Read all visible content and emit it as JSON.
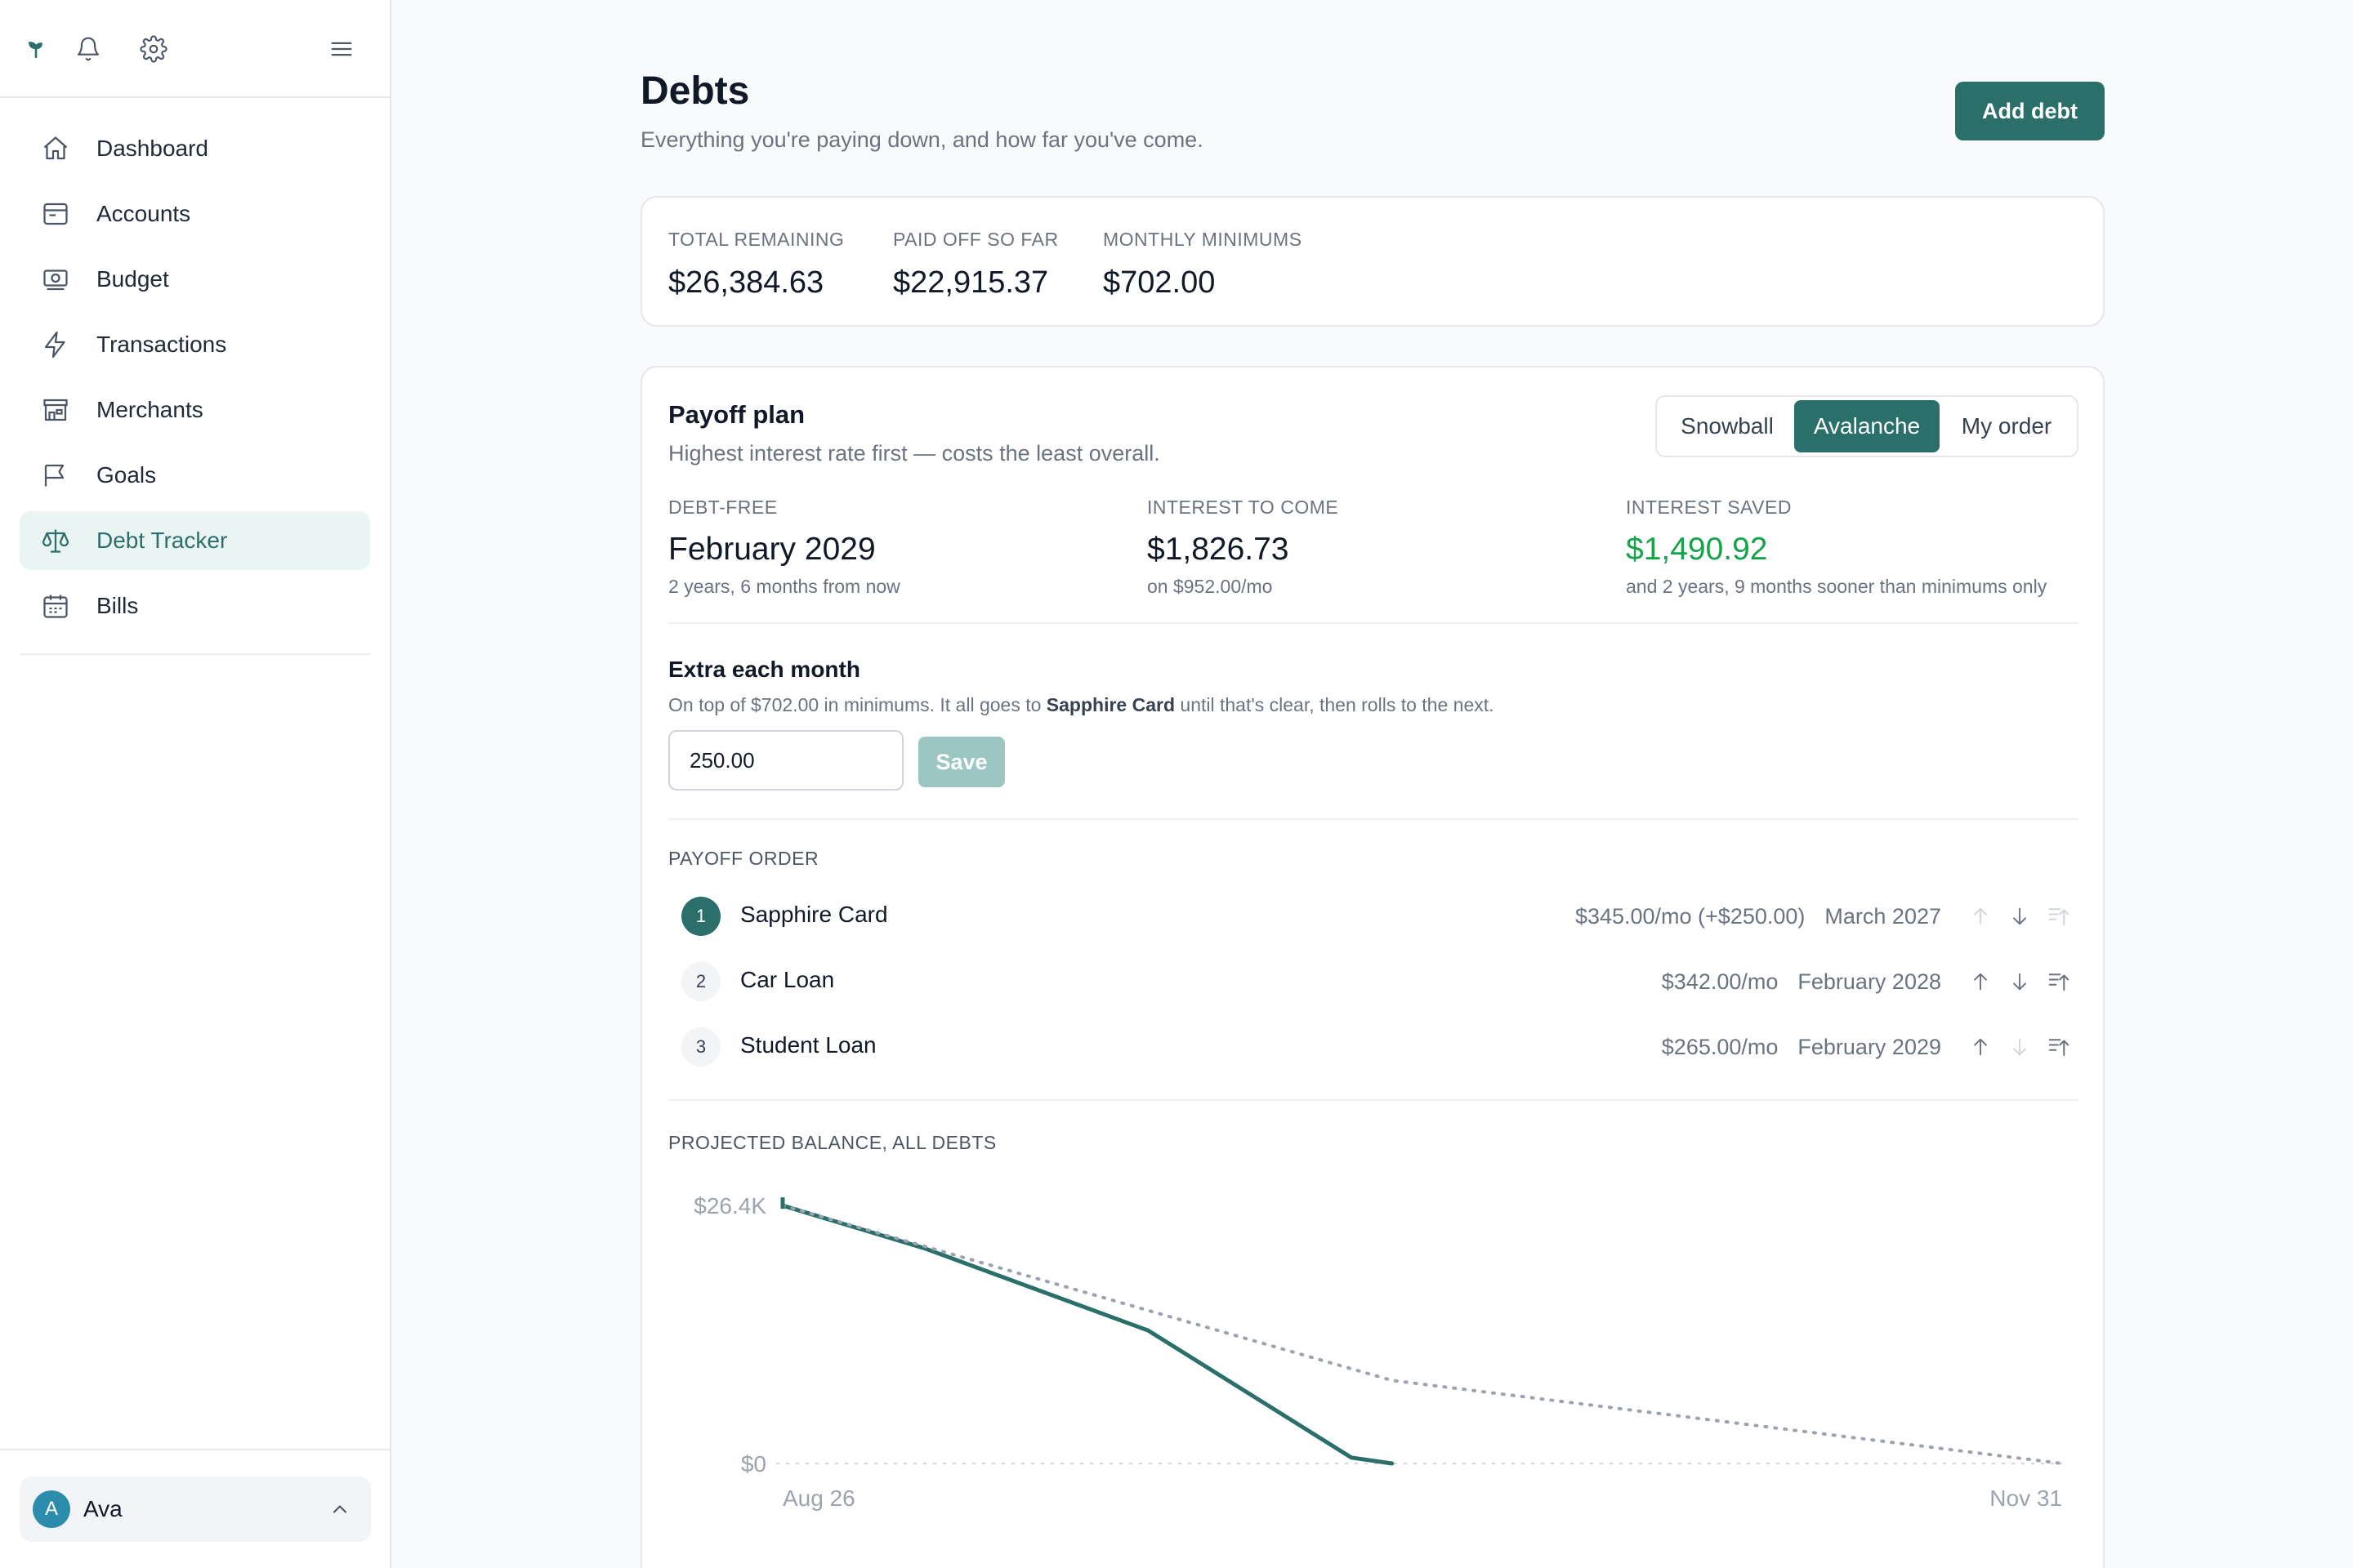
{
  "sidebar": {
    "items": [
      {
        "label": "Dashboard",
        "icon": "home-icon"
      },
      {
        "label": "Accounts",
        "icon": "wallet-icon"
      },
      {
        "label": "Budget",
        "icon": "banknote-icon"
      },
      {
        "label": "Transactions",
        "icon": "bolt-icon"
      },
      {
        "label": "Merchants",
        "icon": "store-icon"
      },
      {
        "label": "Goals",
        "icon": "flag-icon"
      },
      {
        "label": "Debt Tracker",
        "icon": "scale-icon"
      },
      {
        "label": "Bills",
        "icon": "calendar-icon"
      }
    ],
    "active": "Debt Tracker",
    "user": {
      "initial": "A",
      "name": "Ava"
    }
  },
  "header": {
    "title": "Debts",
    "subtitle": "Everything you're paying down, and how far you've come.",
    "add_button": "Add debt"
  },
  "summary": {
    "total_remaining": {
      "label": "TOTAL REMAINING",
      "value": "$26,384.63"
    },
    "paid_off": {
      "label": "PAID OFF SO FAR",
      "value": "$22,915.37"
    },
    "monthly_minimums": {
      "label": "MONTHLY MINIMUMS",
      "value": "$702.00"
    }
  },
  "plan": {
    "title": "Payoff plan",
    "subtitle": "Highest interest rate first — costs the least overall.",
    "strategies": [
      "Snowball",
      "Avalanche",
      "My order"
    ],
    "selected_strategy": "Avalanche",
    "debt_free": {
      "label": "DEBT-FREE",
      "value": "February 2029",
      "note": "2 years, 6 months from now"
    },
    "interest_to_come": {
      "label": "INTEREST TO COME",
      "value": "$1,826.73",
      "note": "on $952.00/mo"
    },
    "interest_saved": {
      "label": "INTEREST SAVED",
      "value": "$1,490.92",
      "note": "and 2 years, 9 months sooner than minimums only"
    },
    "extra": {
      "title": "Extra each month",
      "desc_before": "On top of $702.00 in minimums. It all goes to ",
      "desc_bold": "Sapphire Card",
      "desc_after": " until that's clear, then rolls to the next.",
      "value": "250.00",
      "save_label": "Save"
    },
    "order_title": "PAYOFF ORDER",
    "order": [
      {
        "num": "1",
        "name": "Sapphire Card",
        "payment": "$345.00/mo (+$250.00)",
        "date": "March 2027"
      },
      {
        "num": "2",
        "name": "Car Loan",
        "payment": "$342.00/mo",
        "date": "February 2028"
      },
      {
        "num": "3",
        "name": "Student Loan",
        "payment": "$265.00/mo",
        "date": "February 2029"
      }
    ],
    "projection_title": "PROJECTED BALANCE, ALL DEBTS"
  },
  "colors": {
    "accent": "#2b6f6a",
    "green": "#16a34a",
    "muted": "#9ca3af"
  },
  "chart_data": {
    "type": "line",
    "title": "PROJECTED BALANCE, ALL DEBTS",
    "y_tick_labels": [
      "$26.4K",
      "$0"
    ],
    "x_tick_labels": [
      "Aug 26",
      "Nov 31"
    ],
    "ylim": [
      0,
      26400
    ],
    "x_range_months": [
      "2026-08",
      "2031-11"
    ],
    "series": [
      {
        "style": "solid",
        "color": "#2b6f6a",
        "points": [
          {
            "x": "2026-08",
            "y": 26384
          },
          {
            "x": "2027-03",
            "y": 22000
          },
          {
            "x": "2028-02",
            "y": 13600
          },
          {
            "x": "2028-12",
            "y": 600
          },
          {
            "x": "2029-02",
            "y": 0
          }
        ]
      },
      {
        "style": "dotted",
        "color": "#9ca3af",
        "points": [
          {
            "x": "2026-08",
            "y": 26384
          },
          {
            "x": "2029-02",
            "y": 8500
          },
          {
            "x": "2031-11",
            "y": 0
          }
        ]
      }
    ]
  }
}
